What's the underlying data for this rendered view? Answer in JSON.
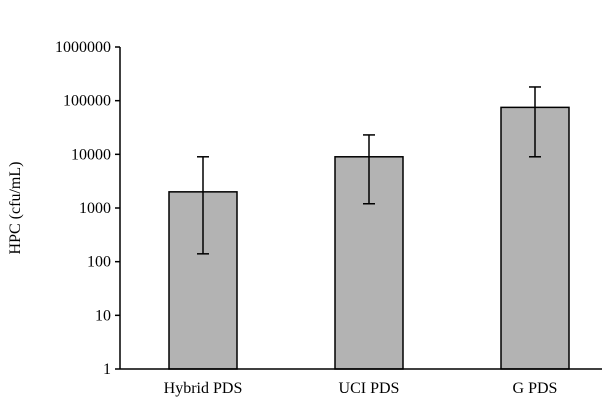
{
  "chart_data": {
    "type": "bar",
    "title": "",
    "xlabel": "",
    "ylabel": "HPC (cfu/mL)",
    "yscale": "log",
    "ylim": [
      1,
      1000000
    ],
    "yticks": [
      "1",
      "10",
      "100",
      "1000",
      "10000",
      "100000",
      "1000000"
    ],
    "categories": [
      "Hybrid PDS",
      "UCI PDS",
      "G PDS"
    ],
    "values": [
      2000,
      9000,
      75000
    ],
    "error_low": [
      140,
      1200,
      9000
    ],
    "error_high": [
      9000,
      23000,
      180000
    ],
    "grid": false,
    "bar_color": "#b3b3b3",
    "bar_edge_color": "#000000"
  }
}
